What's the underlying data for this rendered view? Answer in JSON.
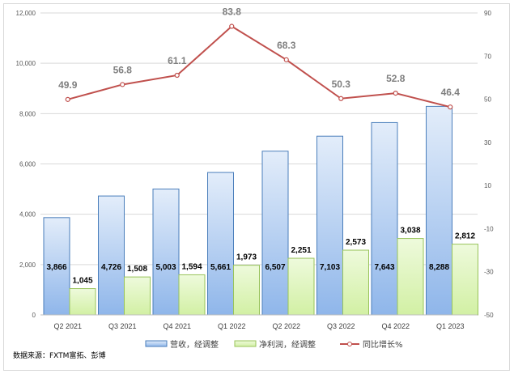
{
  "chart_data": {
    "type": "bar",
    "categories": [
      "Q2 2021",
      "Q3 2021",
      "Q4 2021",
      "Q1 2022",
      "Q2 2022",
      "Q3 2022",
      "Q4 2022",
      "Q1 2023"
    ],
    "series": [
      {
        "name": "营收，经调整",
        "type": "bar",
        "axis": "left",
        "color": "#8db4e2",
        "values": [
          3866,
          4726,
          5003,
          5661,
          6507,
          7103,
          7643,
          8288
        ],
        "labels": [
          "3,866",
          "4,726",
          "5,003",
          "5,661",
          "6,507",
          "7,103",
          "7,643",
          "8,288"
        ]
      },
      {
        "name": "净利润，经调整",
        "type": "bar",
        "axis": "left",
        "color": "#d7f2a8",
        "values": [
          1045,
          1508,
          1594,
          1973,
          2251,
          2573,
          3038,
          2812
        ],
        "labels": [
          "1,045",
          "1,508",
          "1,594",
          "1,973",
          "2,251",
          "2,573",
          "3,038",
          "2,812"
        ]
      },
      {
        "name": "同比增长%",
        "type": "line",
        "axis": "right",
        "color": "#c0504d",
        "values": [
          49.9,
          56.8,
          61.1,
          83.8,
          68.3,
          50.3,
          52.8,
          46.4
        ],
        "labels": [
          "49.9",
          "56.8",
          "61.1",
          "83.8",
          "68.3",
          "50.3",
          "52.8",
          "46.4"
        ]
      }
    ],
    "ylim": [
      0,
      12000
    ],
    "yticks": [
      "0",
      "2,000",
      "4,000",
      "6,000",
      "8,000",
      "10,000",
      "12,000"
    ],
    "y2lim": [
      -50,
      90
    ],
    "y2ticks": [
      "-50",
      "-30",
      "-10",
      "10",
      "30",
      "50",
      "70",
      "90"
    ],
    "grid": true,
    "legend": "bottom"
  },
  "source": "数据来源：FXTM富拓、彭博"
}
